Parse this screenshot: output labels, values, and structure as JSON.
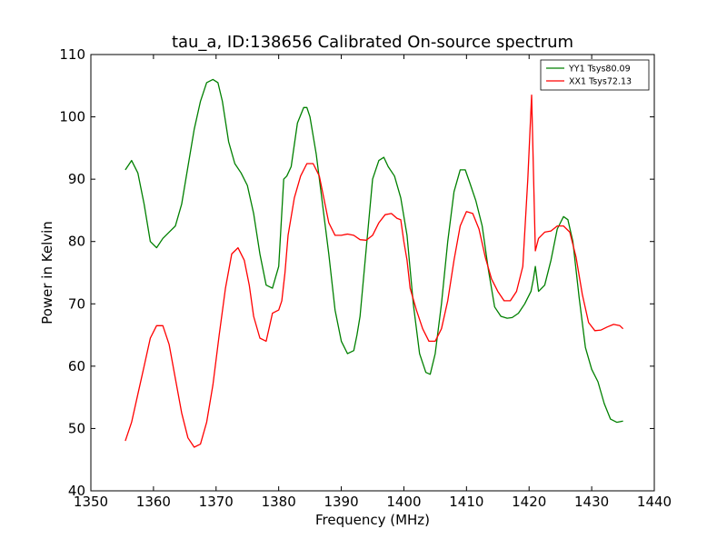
{
  "chart_data": {
    "type": "line",
    "title": "tau_a, ID:138656 Calibrated On-source spectrum",
    "xlabel": "Frequency (MHz)",
    "ylabel": "Power in Kelvin",
    "xlim": [
      1350,
      1440
    ],
    "ylim": [
      40,
      110
    ],
    "xticks": [
      1350,
      1360,
      1370,
      1380,
      1390,
      1400,
      1410,
      1420,
      1430,
      1440
    ],
    "yticks": [
      40,
      50,
      60,
      70,
      80,
      90,
      100,
      110
    ],
    "grid": false,
    "legend_position": "top-right",
    "series": [
      {
        "name": "YY1 Tsys80.09",
        "color": "#008000",
        "x": [
          1355.5,
          1356.5,
          1357.5,
          1358.5,
          1359.5,
          1360.5,
          1361.5,
          1362.5,
          1363.5,
          1364.5,
          1365.5,
          1366.5,
          1367.5,
          1368.5,
          1369.5,
          1370.3,
          1371,
          1372,
          1373,
          1374,
          1375,
          1376,
          1377,
          1378,
          1379,
          1380,
          1380.8,
          1381.3,
          1382,
          1383,
          1384,
          1384.5,
          1385,
          1386,
          1387,
          1388,
          1389,
          1390,
          1391,
          1392,
          1392.5,
          1393,
          1394,
          1395,
          1396,
          1396.8,
          1397.5,
          1398.5,
          1399.5,
          1400.5,
          1401.5,
          1402.5,
          1403.5,
          1404.2,
          1405,
          1406,
          1407,
          1408,
          1409,
          1409.8,
          1410.5,
          1411.5,
          1412.5,
          1413.5,
          1414.5,
          1415.5,
          1416.5,
          1417.3,
          1418.3,
          1419.3,
          1420.3,
          1420.7,
          1421,
          1421.5,
          1422.5,
          1423.5,
          1424.5,
          1425.5,
          1426.2,
          1427,
          1428,
          1429,
          1430,
          1431,
          1432,
          1433,
          1434,
          1435
        ],
        "values": [
          91.5,
          93,
          91,
          86,
          80,
          79,
          80.5,
          81.5,
          82.5,
          86,
          92,
          98,
          102.5,
          105.5,
          106,
          105.5,
          102.5,
          96,
          92.5,
          91,
          89,
          84.5,
          78,
          73,
          72.5,
          76,
          90,
          90.5,
          92,
          99,
          101.5,
          101.5,
          100,
          94,
          86,
          78,
          69,
          64,
          62,
          62.5,
          65,
          68,
          79,
          90,
          93,
          93.5,
          92,
          90.5,
          87,
          81,
          70,
          62,
          59,
          58.7,
          62,
          70,
          80,
          88,
          91.5,
          91.5,
          89.5,
          86.5,
          82.5,
          75.5,
          69.5,
          68,
          67.7,
          67.8,
          68.5,
          70,
          72,
          74,
          76,
          72,
          73,
          77,
          82,
          84,
          83.5,
          80,
          71,
          63,
          59.5,
          57.5,
          54,
          51.5,
          51,
          51.2
        ]
      },
      {
        "name": "XX1 Tsys72.13",
        "color": "#ff0000",
        "x": [
          1355.5,
          1356.5,
          1357.5,
          1358.5,
          1359.5,
          1360.5,
          1361.5,
          1362.5,
          1363.5,
          1364.5,
          1365.5,
          1366.5,
          1367.5,
          1368.5,
          1369.5,
          1370.5,
          1371.5,
          1372.5,
          1373.5,
          1374.5,
          1375.3,
          1376,
          1377,
          1378,
          1379,
          1380,
          1380.5,
          1381,
          1381.5,
          1382.5,
          1383.5,
          1384.5,
          1385.5,
          1386.5,
          1387.2,
          1388,
          1389,
          1390,
          1391,
          1392,
          1393,
          1394,
          1395,
          1396,
          1397,
          1398,
          1398.9,
          1399.5,
          1400,
          1400.5,
          1401,
          1402,
          1403,
          1404,
          1405,
          1406,
          1407,
          1408,
          1409,
          1410,
          1411,
          1412,
          1413,
          1414,
          1415,
          1416,
          1417,
          1418,
          1419,
          1419.8,
          1420.4,
          1420.6,
          1421,
          1421.5,
          1422.5,
          1423.5,
          1424.5,
          1425.5,
          1426.5,
          1427.5,
          1428.5,
          1429.5,
          1430.5,
          1431.5,
          1432.5,
          1433.5,
          1434.5,
          1435
        ],
        "values": [
          48,
          51,
          55.5,
          60,
          64.5,
          66.5,
          66.5,
          63.5,
          58,
          52.5,
          48.5,
          47,
          47.5,
          51,
          57,
          65,
          72.5,
          78,
          79,
          77,
          73,
          68,
          64.5,
          64,
          68.5,
          69,
          70.5,
          75,
          81,
          87,
          90.5,
          92.5,
          92.5,
          90.5,
          87,
          83,
          81,
          81,
          81.2,
          81,
          80.3,
          80.2,
          81,
          83,
          84.3,
          84.5,
          83.7,
          83.5,
          80,
          77,
          72.5,
          69,
          66,
          64,
          64,
          66,
          70.5,
          77,
          82.5,
          84.8,
          84.5,
          82,
          77.5,
          74,
          72,
          70.5,
          70.5,
          72,
          76,
          90,
          103.5,
          95,
          78.5,
          80.5,
          81.5,
          81.7,
          82.5,
          82.5,
          81.5,
          77.5,
          71.5,
          67,
          65.7,
          65.8,
          66.3,
          66.7,
          66.5,
          66
        ]
      }
    ]
  }
}
